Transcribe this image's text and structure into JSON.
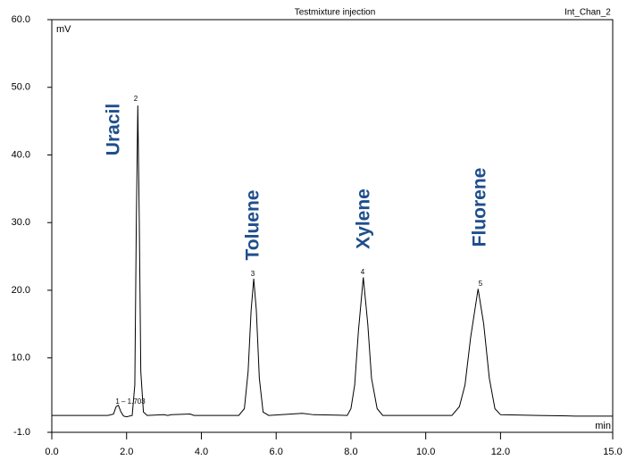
{
  "chart_data": {
    "type": "line",
    "title": "Testmixture injection",
    "channel": "Int_Chan_2",
    "y_unit": "mV",
    "x_unit": "min",
    "xlim": [
      0,
      15
    ],
    "ylim": [
      -1,
      60
    ],
    "xticks": [
      {
        "value": 0,
        "label": "0.0"
      },
      {
        "value": 2,
        "label": "2.0"
      },
      {
        "value": 4,
        "label": "4.0"
      },
      {
        "value": 6,
        "label": "6.0"
      },
      {
        "value": 8,
        "label": "8.0"
      },
      {
        "value": 10,
        "label": "10.0"
      },
      {
        "value": 12,
        "label": "12.0"
      },
      {
        "value": 15,
        "label": "15.0"
      }
    ],
    "yticks": [
      {
        "value": -1,
        "label": "-1.0"
      },
      {
        "value": 10,
        "label": "10.0"
      },
      {
        "value": 20,
        "label": "20.0"
      },
      {
        "value": 30,
        "label": "30.0"
      },
      {
        "value": 40,
        "label": "40.0"
      },
      {
        "value": 50,
        "label": "50.0"
      },
      {
        "value": 60,
        "label": "60.0"
      }
    ],
    "series": [
      {
        "name": "Int_Chan_2",
        "color": "#000000",
        "x": [
          0,
          1.5,
          1.65,
          1.72,
          1.78,
          1.85,
          1.92,
          2.0,
          2.15,
          2.22,
          2.26,
          2.3,
          2.34,
          2.38,
          2.45,
          2.55,
          3.0,
          3.1,
          3.2,
          3.7,
          3.8,
          5.0,
          5.15,
          5.25,
          5.33,
          5.4,
          5.47,
          5.55,
          5.65,
          5.8,
          6.7,
          7.0,
          7.9,
          8.0,
          8.1,
          8.2,
          8.33,
          8.45,
          8.55,
          8.7,
          8.85,
          10.7,
          10.9,
          11.05,
          11.2,
          11.4,
          11.55,
          11.7,
          11.85,
          12.0,
          13.0,
          14.0,
          15.0
        ],
        "values": [
          1.5,
          1.5,
          1.7,
          2.8,
          3.0,
          2.0,
          1.4,
          1.3,
          1.5,
          6,
          30,
          47.3,
          30,
          8,
          2,
          1.5,
          1.6,
          1.5,
          1.6,
          1.7,
          1.5,
          1.5,
          2.5,
          8,
          17,
          21.7,
          17,
          7,
          2,
          1.5,
          1.8,
          1.6,
          1.5,
          2.5,
          6,
          14,
          21.9,
          15,
          7,
          2.5,
          1.5,
          1.5,
          2.8,
          6,
          13,
          20.2,
          15,
          7,
          2.5,
          1.6,
          1.5,
          1.4,
          1.4
        ]
      }
    ],
    "peak_labels": [
      "1 – 1.703",
      "2",
      "3",
      "4",
      "5"
    ],
    "compound_names": [
      "Uracil",
      "Toluene",
      "Xylene",
      "Fluorene"
    ],
    "compound_color": "#1f4e8c"
  }
}
